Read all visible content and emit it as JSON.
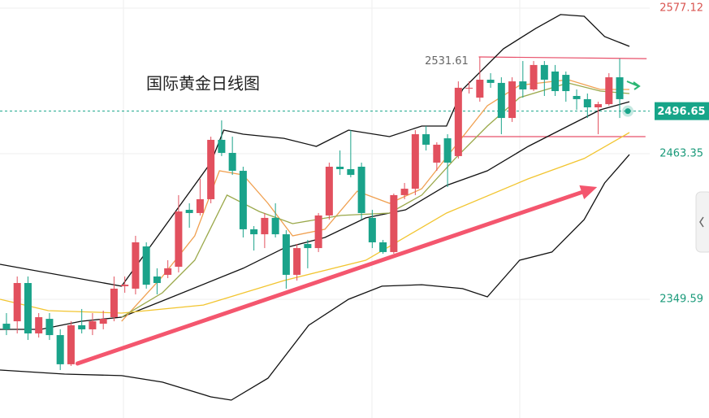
{
  "chart_data": {
    "type": "candlestick",
    "title": "国际黄金日线图",
    "up_color": "#e2505e",
    "down_color": "#1aa38a",
    "xlim": [
      -0.6,
      65.3
    ],
    "ylim": [
      2256.8,
      2583.5
    ],
    "yticks": [
      2577.12,
      2463.35,
      2349.59
    ],
    "ytick_colors": [
      "#d9534f",
      "#1a9a7a",
      "#1a9a7a"
    ],
    "grid": true,
    "last_price": 2496.65,
    "last_price_color": "#17a589",
    "annotation": {
      "value": 2531.61,
      "x": 44
    },
    "candles": {
      "open": [
        2330.5,
        2332.4,
        2362.3,
        2322.9,
        2334.3,
        2321.6,
        2298.8,
        2329.3,
        2326.1,
        2330.5,
        2335.6,
        2359.8,
        2357.9,
        2390.9,
        2367.4,
        2368.7,
        2375.0,
        2419.5,
        2417.0,
        2427.8,
        2474.2,
        2464.0,
        2450.0,
        2404.3,
        2400.4,
        2413.2,
        2400.4,
        2368.7,
        2392.8,
        2389.6,
        2415.1,
        2453.2,
        2451.3,
        2453.2,
        2413.2,
        2394.1,
        2386.5,
        2431.0,
        2436.0,
        2478.6,
        2456.4,
        2475.4,
        2461.5,
        2514.9,
        2507.2,
        2521.2,
        2518.7,
        2491.3,
        2519.9,
        2513.6,
        2532.7,
        2527.6,
        2525.0,
        2508.5,
        2506.0,
        2499.6,
        2502.1,
        2523.1
      ],
      "high": [
        2338.8,
        2367.4,
        2367.4,
        2338.8,
        2338.8,
        2326.1,
        2332.4,
        2342.0,
        2338.8,
        2340.7,
        2367.4,
        2367.4,
        2399.2,
        2394.1,
        2373.8,
        2380.1,
        2431.0,
        2424.6,
        2443.7,
        2476.7,
        2489.4,
        2476.7,
        2453.2,
        2406.8,
        2417.0,
        2424.6,
        2403.6,
        2392.8,
        2396.0,
        2417.0,
        2456.4,
        2465.9,
        2481.8,
        2456.4,
        2419.5,
        2396.0,
        2432.2,
        2440.5,
        2481.8,
        2485.0,
        2472.3,
        2478.6,
        2519.9,
        2519.9,
        2539.0,
        2526.3,
        2523.1,
        2523.1,
        2535.8,
        2535.8,
        2535.8,
        2532.7,
        2527.6,
        2513.6,
        2510.4,
        2504.0,
        2526.3,
        2537.7
      ],
      "low": [
        2321.6,
        2322.9,
        2317.8,
        2319.7,
        2317.8,
        2294.3,
        2297.5,
        2322.9,
        2321.6,
        2326.1,
        2332.4,
        2354.7,
        2353.4,
        2357.9,
        2353.4,
        2366.1,
        2370.6,
        2405.5,
        2415.1,
        2424.6,
        2461.5,
        2446.8,
        2397.9,
        2387.7,
        2389.6,
        2397.9,
        2357.9,
        2364.2,
        2373.8,
        2386.5,
        2411.9,
        2446.8,
        2444.9,
        2411.9,
        2389.6,
        2385.2,
        2385.2,
        2427.8,
        2431.0,
        2465.9,
        2450.0,
        2437.3,
        2459.6,
        2510.4,
        2504.0,
        2514.9,
        2478.6,
        2488.2,
        2507.2,
        2512.3,
        2508.5,
        2508.5,
        2504.0,
        2497.7,
        2491.3,
        2478.6,
        2500.9,
        2491.3
      ],
      "close": [
        2326.1,
        2362.3,
        2322.9,
        2335.6,
        2321.6,
        2298.8,
        2329.3,
        2326.1,
        2332.4,
        2334.3,
        2357.9,
        2361.0,
        2394.1,
        2361.0,
        2362.3,
        2373.8,
        2418.2,
        2417.0,
        2427.8,
        2474.2,
        2464.0,
        2450.0,
        2404.3,
        2400.4,
        2413.2,
        2400.4,
        2368.7,
        2389.6,
        2389.6,
        2415.1,
        2453.2,
        2451.3,
        2446.8,
        2417.0,
        2394.1,
        2386.5,
        2431.0,
        2436.0,
        2478.6,
        2470.4,
        2470.4,
        2456.4,
        2514.9,
        2514.9,
        2521.2,
        2518.7,
        2491.3,
        2519.9,
        2513.6,
        2532.7,
        2521.2,
        2512.3,
        2512.3,
        2506.0,
        2499.6,
        2502.1,
        2523.1,
        2506.0
      ]
    },
    "lines": [
      {
        "color": "#111111",
        "x": [
          -0.6,
          10.7,
          19.0,
          20.2,
          22.0,
          25.8,
          28.8,
          31.8,
          35.6,
          38.6,
          40.9,
          42.4,
          46.2,
          49.2,
          51.5,
          53.7,
          55.6,
          57.9
        ],
        "values": [
          2376.9,
          2359.8,
          2456.4,
          2481.8,
          2478.6,
          2475.4,
          2469.1,
          2481.8,
          2476.7,
          2485.0,
          2485.0,
          2513.6,
          2545.4,
          2561.3,
          2572.1,
          2570.8,
          2554.9,
          2547.3
        ]
      },
      {
        "color": "#111111",
        "x": [
          -0.6,
          3.2,
          6.9,
          10.7,
          14.5,
          22.0,
          25.8,
          29.6,
          33.4,
          37.1,
          40.9,
          44.7,
          48.5,
          52.2,
          55.2,
          57.9
        ],
        "values": [
          2326.1,
          2326.1,
          2332.4,
          2335.6,
          2348.3,
          2373.8,
          2389.6,
          2397.9,
          2413.2,
          2419.5,
          2438.6,
          2450.0,
          2469.1,
          2485.0,
          2497.7,
          2504.0
        ]
      },
      {
        "color": "#111111",
        "x": [
          -0.6,
          5.4,
          10.7,
          14.5,
          19.0,
          20.9,
          24.3,
          28.1,
          31.8,
          34.9,
          38.6,
          42.4,
          44.7,
          47.7,
          50.7,
          53.7,
          55.6,
          57.9
        ],
        "values": [
          2294.3,
          2291.1,
          2289.9,
          2284.8,
          2273.3,
          2270.8,
          2287.9,
          2329.3,
          2349.6,
          2359.8,
          2361.0,
          2357.9,
          2351.5,
          2380.1,
          2386.5,
          2411.9,
          2440.5,
          2462.7
        ]
      },
      {
        "color": "#f2c530",
        "x": [
          -0.6,
          3.9,
          10.7,
          18.3,
          25.8,
          33.4,
          40.9,
          48.5,
          53.7,
          57.9
        ],
        "values": [
          2349.6,
          2340.7,
          2338.8,
          2345.1,
          2364.2,
          2380.1,
          2417.0,
          2443.7,
          2459.6,
          2479.9
        ]
      },
      {
        "color": "#f0a050",
        "x": [
          10.7,
          14.5,
          17.5,
          19.8,
          22.0,
          24.3,
          26.6,
          29.6,
          32.6,
          35.6,
          38.6,
          41.7,
          44.7,
          47.7,
          52.2,
          55.2,
          57.9
        ],
        "values": [
          2332.4,
          2367.4,
          2399.2,
          2450.0,
          2446.8,
          2424.6,
          2399.2,
          2404.3,
          2434.1,
          2424.6,
          2436.0,
          2469.1,
          2500.9,
          2516.8,
          2521.2,
          2513.6,
          2513.6
        ]
      },
      {
        "color": "#9aa84a",
        "x": [
          10.7,
          14.5,
          17.5,
          20.5,
          23.5,
          26.6,
          31.1,
          35.6,
          38.6,
          41.7,
          44.7,
          47.7,
          52.2,
          55.2,
          57.9
        ],
        "values": [
          2335.6,
          2354.7,
          2380.1,
          2431.0,
          2418.2,
          2408.7,
          2415.1,
          2417.0,
          2431.0,
          2459.6,
          2485.0,
          2507.2,
          2518.7,
          2512.3,
          2510.4
        ]
      }
    ],
    "channel": [
      {
        "color": "#e8506a",
        "x": [
          43.9,
          59.5
        ],
        "values": [
          2539.0,
          2537.7
        ]
      },
      {
        "color": "#e8506a",
        "x": [
          41.7,
          59.4
        ],
        "values": [
          2476.7,
          2476.7
        ]
      }
    ],
    "trend": {
      "color": "#f4566e",
      "x": [
        6.6,
        54.9
      ],
      "values": [
        2299.4,
        2437.3
      ]
    }
  }
}
